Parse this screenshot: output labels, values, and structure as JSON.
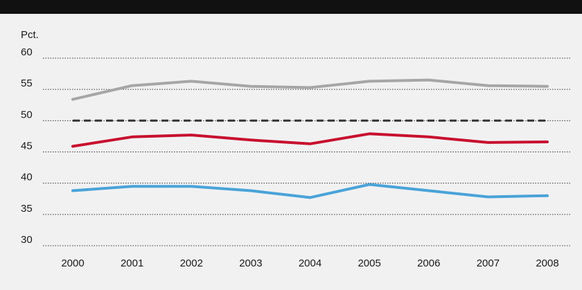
{
  "chart_data": {
    "type": "line",
    "unit_label": "Pct.",
    "x": [
      "2000",
      "2001",
      "2002",
      "2003",
      "2004",
      "2005",
      "2006",
      "2007",
      "2008"
    ],
    "ylim": [
      30,
      60
    ],
    "y_ticks": [
      "30",
      "35",
      "40",
      "45",
      "50",
      "55",
      "60"
    ],
    "grid": "dotted horizontal",
    "series": [
      {
        "color": "#a6a6a6",
        "style": "solid",
        "values": [
          53.4,
          55.6,
          56.3,
          55.5,
          55.3,
          56.3,
          56.5,
          55.6,
          55.5
        ]
      },
      {
        "color": "#333333",
        "style": "dashed",
        "values": [
          50,
          50,
          50,
          50,
          50,
          50,
          50,
          50,
          50
        ]
      },
      {
        "color": "#c8102e",
        "style": "solid",
        "values": [
          45.9,
          47.4,
          47.7,
          46.9,
          46.3,
          47.9,
          47.4,
          46.5,
          46.6
        ]
      },
      {
        "color": "#4aa3d8",
        "style": "solid",
        "values": [
          38.8,
          39.5,
          39.5,
          38.8,
          37.7,
          39.8,
          38.8,
          37.8,
          38.0
        ]
      }
    ]
  }
}
